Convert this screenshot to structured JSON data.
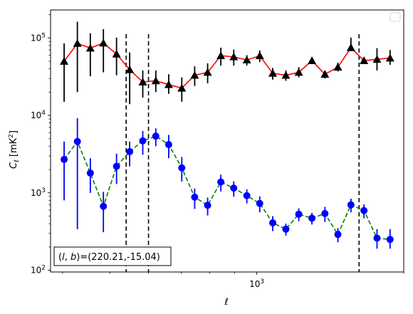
{
  "chart_data": {
    "type": "scatter",
    "title": "",
    "xlabel": "ℓ",
    "ylabel": "C_ℓ [mK²]",
    "xscale": "log",
    "yscale": "log",
    "xlim": [
      378,
      2000
    ],
    "ylim": [
      95,
      230000
    ],
    "x_tick_labels": [
      {
        "value": 1000,
        "base": "10",
        "exp": "3"
      }
    ],
    "y_tick_labels": [
      {
        "value": 100,
        "base": "10",
        "exp": "2"
      },
      {
        "value": 1000,
        "base": "10",
        "exp": "3"
      },
      {
        "value": 10000,
        "base": "10",
        "exp": "4"
      },
      {
        "value": 100000,
        "base": "10",
        "exp": "5"
      }
    ],
    "annotation": {
      "prefix": "(l, b)=",
      "value": "(220.21,-15.04)"
    },
    "vertical_lines": [
      {
        "x": 540,
        "style": "dashed",
        "color": "#000000"
      },
      {
        "x": 600,
        "style": "dashed",
        "color": "#000000"
      },
      {
        "x": 1620,
        "style": "dashed",
        "color": "#000000"
      }
    ],
    "series": [
      {
        "marker": "triangle",
        "marker_color": "#000000",
        "line_color": "#ff0000",
        "line_style": "solid",
        "errbar_color": "#000000",
        "x": [
          403,
          429,
          456,
          485,
          516,
          549,
          584,
          621,
          660,
          702,
          746,
          793,
          844,
          897,
          954,
          1014,
          1078,
          1147,
          1219,
          1297,
          1379,
          1466,
          1559,
          1658,
          1763,
          1875
        ],
        "y": [
          50000,
          85000,
          74000,
          86000,
          62000,
          39000,
          27000,
          28000,
          25000,
          22500,
          33000,
          36000,
          59000,
          57000,
          52000,
          59000,
          35000,
          33000,
          36000,
          51000,
          34000,
          42000,
          75000,
          51000,
          53000,
          55000
        ],
        "err_low": [
          15000,
          20000,
          32000,
          36000,
          33000,
          14000,
          17000,
          20000,
          19000,
          15000,
          24000,
          26000,
          44000,
          44000,
          44000,
          49000,
          29000,
          28000,
          31000,
          46000,
          30000,
          37000,
          68000,
          46000,
          38000,
          45000
        ],
        "err_high": [
          85000,
          162000,
          115000,
          130000,
          101000,
          65000,
          38000,
          38000,
          34000,
          31000,
          43000,
          47000,
          75000,
          71000,
          60000,
          69000,
          41000,
          38000,
          42000,
          56000,
          38000,
          48000,
          101000,
          56000,
          74000,
          70000
        ]
      },
      {
        "marker": "circle",
        "marker_color": "#0000ff",
        "line_color": "#008000",
        "line_style": "dashed",
        "errbar_color": "#0000ff",
        "x": [
          403,
          429,
          456,
          485,
          516,
          549,
          584,
          621,
          660,
          702,
          746,
          793,
          844,
          897,
          954,
          1014,
          1078,
          1147,
          1219,
          1297,
          1379,
          1466,
          1559,
          1658,
          1763,
          1875
        ],
        "y": [
          2700,
          4600,
          1800,
          670,
          2200,
          3400,
          4700,
          5400,
          4200,
          2100,
          880,
          690,
          1380,
          1150,
          920,
          730,
          410,
          340,
          530,
          470,
          540,
          290,
          700,
          590,
          260,
          250
        ],
        "err_low": [
          800,
          340,
          1000,
          310,
          1300,
          2200,
          3100,
          4000,
          2800,
          1400,
          620,
          510,
          1040,
          890,
          730,
          560,
          320,
          280,
          430,
          390,
          420,
          230,
          560,
          470,
          190,
          190
        ],
        "err_high": [
          4600,
          9200,
          2800,
          1030,
          3200,
          4600,
          6300,
          6800,
          5600,
          2900,
          1140,
          870,
          1720,
          1410,
          1110,
          900,
          500,
          400,
          630,
          550,
          660,
          350,
          840,
          710,
          340,
          340
        ]
      }
    ]
  }
}
